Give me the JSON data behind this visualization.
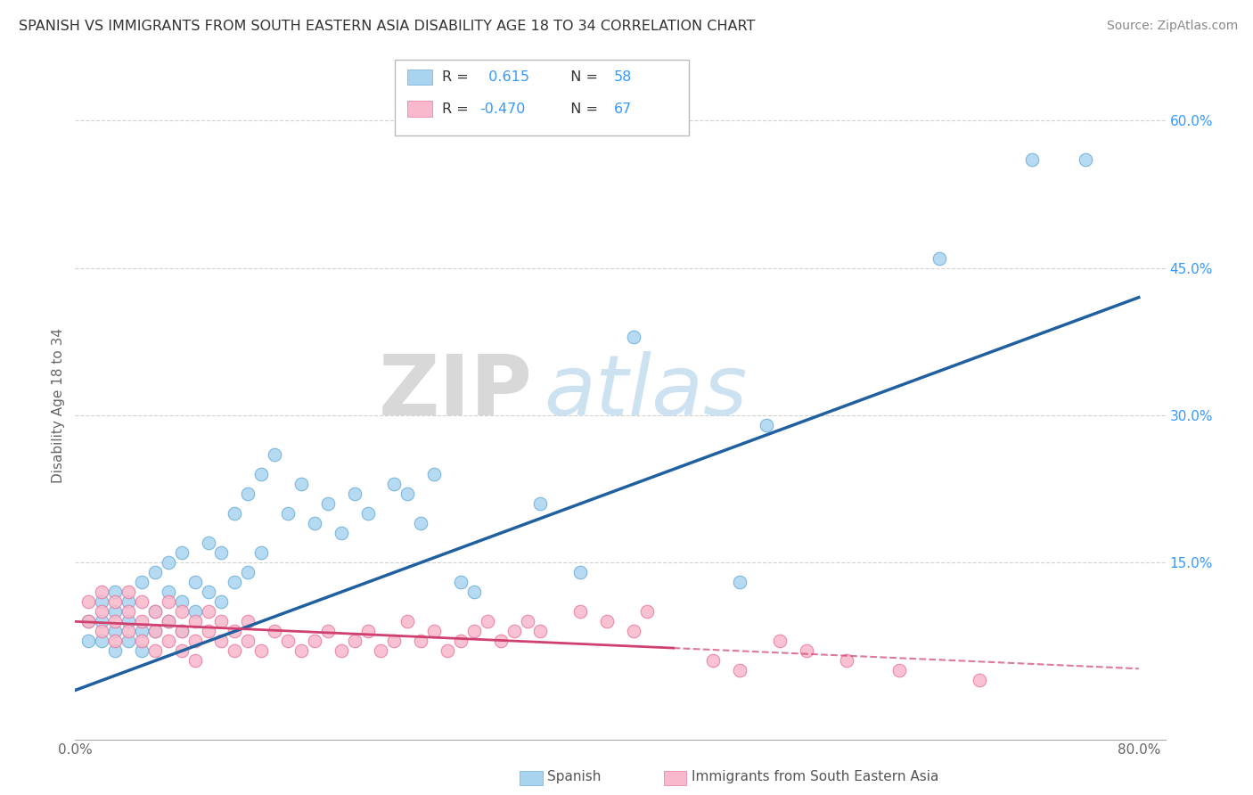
{
  "title": "SPANISH VS IMMIGRANTS FROM SOUTH EASTERN ASIA DISABILITY AGE 18 TO 34 CORRELATION CHART",
  "source": "Source: ZipAtlas.com",
  "ylabel": "Disability Age 18 to 34",
  "xlim": [
    0.0,
    0.82
  ],
  "ylim": [
    -0.03,
    0.65
  ],
  "xticks": [
    0.0,
    0.1,
    0.2,
    0.3,
    0.4,
    0.5,
    0.6,
    0.7,
    0.8
  ],
  "xticklabels": [
    "0.0%",
    "",
    "",
    "",
    "",
    "",
    "",
    "",
    "80.0%"
  ],
  "yticks_right": [
    0.0,
    0.15,
    0.3,
    0.45,
    0.6
  ],
  "yticklabels_right": [
    "",
    "15.0%",
    "30.0%",
    "45.0%",
    "60.0%"
  ],
  "legend_R1": " 0.615",
  "legend_N1": "58",
  "legend_R2": "-0.470",
  "legend_N2": "67",
  "blue_scatter_x": [
    0.01,
    0.01,
    0.02,
    0.02,
    0.02,
    0.03,
    0.03,
    0.03,
    0.03,
    0.04,
    0.04,
    0.04,
    0.05,
    0.05,
    0.05,
    0.06,
    0.06,
    0.06,
    0.07,
    0.07,
    0.07,
    0.08,
    0.08,
    0.08,
    0.09,
    0.09,
    0.1,
    0.1,
    0.11,
    0.11,
    0.12,
    0.12,
    0.13,
    0.13,
    0.14,
    0.14,
    0.15,
    0.16,
    0.17,
    0.18,
    0.19,
    0.2,
    0.21,
    0.22,
    0.24,
    0.25,
    0.26,
    0.27,
    0.29,
    0.3,
    0.35,
    0.38,
    0.42,
    0.5,
    0.52,
    0.65,
    0.72,
    0.76
  ],
  "blue_scatter_y": [
    0.07,
    0.09,
    0.07,
    0.09,
    0.11,
    0.06,
    0.08,
    0.1,
    0.12,
    0.07,
    0.09,
    0.11,
    0.06,
    0.08,
    0.13,
    0.08,
    0.1,
    0.14,
    0.09,
    0.12,
    0.15,
    0.08,
    0.11,
    0.16,
    0.1,
    0.13,
    0.12,
    0.17,
    0.11,
    0.16,
    0.13,
    0.2,
    0.14,
    0.22,
    0.16,
    0.24,
    0.26,
    0.2,
    0.23,
    0.19,
    0.21,
    0.18,
    0.22,
    0.2,
    0.23,
    0.22,
    0.19,
    0.24,
    0.13,
    0.12,
    0.21,
    0.14,
    0.38,
    0.13,
    0.29,
    0.46,
    0.56,
    0.56
  ],
  "pink_scatter_x": [
    0.01,
    0.01,
    0.02,
    0.02,
    0.02,
    0.03,
    0.03,
    0.03,
    0.04,
    0.04,
    0.04,
    0.05,
    0.05,
    0.05,
    0.06,
    0.06,
    0.06,
    0.07,
    0.07,
    0.07,
    0.08,
    0.08,
    0.08,
    0.09,
    0.09,
    0.09,
    0.1,
    0.1,
    0.11,
    0.11,
    0.12,
    0.12,
    0.13,
    0.13,
    0.14,
    0.15,
    0.16,
    0.17,
    0.18,
    0.19,
    0.2,
    0.21,
    0.22,
    0.23,
    0.24,
    0.25,
    0.26,
    0.27,
    0.28,
    0.29,
    0.3,
    0.31,
    0.32,
    0.33,
    0.34,
    0.35,
    0.38,
    0.4,
    0.42,
    0.43,
    0.48,
    0.5,
    0.53,
    0.55,
    0.58,
    0.62,
    0.68
  ],
  "pink_scatter_y": [
    0.09,
    0.11,
    0.08,
    0.1,
    0.12,
    0.07,
    0.09,
    0.11,
    0.08,
    0.1,
    0.12,
    0.07,
    0.09,
    0.11,
    0.08,
    0.1,
    0.06,
    0.07,
    0.09,
    0.11,
    0.06,
    0.08,
    0.1,
    0.07,
    0.09,
    0.05,
    0.08,
    0.1,
    0.07,
    0.09,
    0.06,
    0.08,
    0.07,
    0.09,
    0.06,
    0.08,
    0.07,
    0.06,
    0.07,
    0.08,
    0.06,
    0.07,
    0.08,
    0.06,
    0.07,
    0.09,
    0.07,
    0.08,
    0.06,
    0.07,
    0.08,
    0.09,
    0.07,
    0.08,
    0.09,
    0.08,
    0.1,
    0.09,
    0.08,
    0.1,
    0.05,
    0.04,
    0.07,
    0.06,
    0.05,
    0.04,
    0.03
  ],
  "blue_line_slope": 0.5,
  "blue_line_intercept": 0.02,
  "pink_line_slope": -0.06,
  "pink_line_intercept": 0.09,
  "pink_line_solid_end": 0.45,
  "blue_color": "#a8d4f0",
  "blue_edge_color": "#6baed6",
  "blue_line_color": "#2060a0",
  "pink_color": "#f9b8cb",
  "pink_edge_color": "#e879a0",
  "pink_line_color": "#d0406e",
  "watermark_zip": "ZIP",
  "watermark_atlas": "atlas",
  "bg_color": "#ffffff",
  "grid_color": "#cccccc"
}
